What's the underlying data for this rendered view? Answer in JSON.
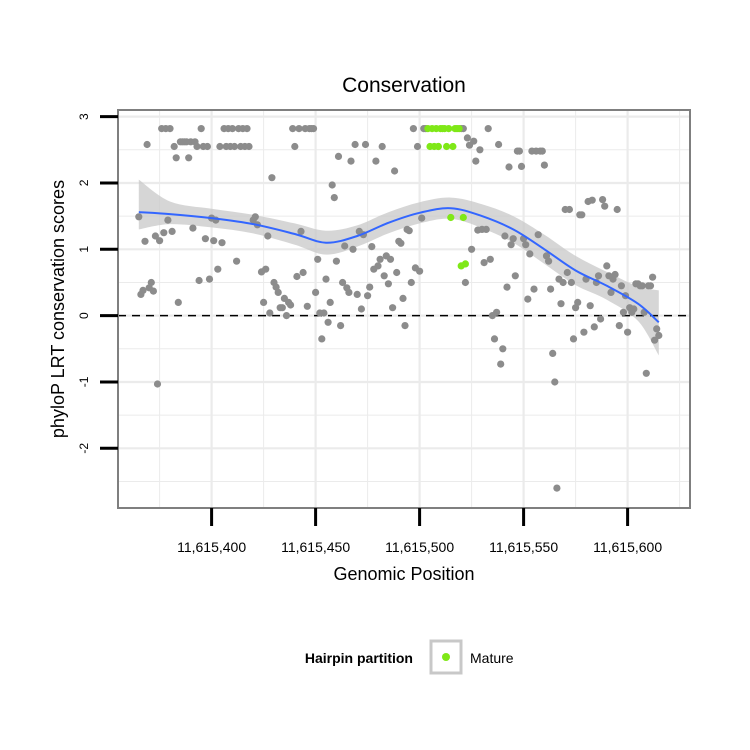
{
  "chart_data": {
    "type": "scatter",
    "title": "Conservation",
    "xlabel": "Genomic Position",
    "ylabel": "phyloP LRT conservation scores",
    "xlim": [
      11615355,
      11615630
    ],
    "ylim": [
      -2.9,
      3.1
    ],
    "x_ticks": [
      {
        "value": 11615400,
        "label": "11,615,400"
      },
      {
        "value": 11615450,
        "label": "11,615,450"
      },
      {
        "value": 11615500,
        "label": "11,615,500"
      },
      {
        "value": 11615550,
        "label": "11,615,550"
      },
      {
        "value": 11615600,
        "label": "11,615,600"
      }
    ],
    "y_ticks": [
      {
        "value": 3,
        "label": "3"
      },
      {
        "value": 2,
        "label": "2"
      },
      {
        "value": 1,
        "label": "1"
      },
      {
        "value": 0,
        "label": "0"
      },
      {
        "value": -1,
        "label": "-1"
      },
      {
        "value": -2,
        "label": "-2"
      }
    ],
    "reference_line": {
      "y": 0,
      "style": "dashed"
    },
    "colors": {
      "other": "#8c8c8c",
      "mature": "#7fe817",
      "smooth": "#3366ff",
      "ribbon": "#c8c8c8",
      "panel_border": "#7f7f7f",
      "grid": "#ebebeb"
    },
    "smooth": {
      "x": [
        11615365,
        11615380,
        11615400,
        11615420,
        11615440,
        11615455,
        11615470,
        11615485,
        11615500,
        11615515,
        11615530,
        11615545,
        11615560,
        11615575,
        11615590,
        11615605,
        11615615
      ],
      "y": [
        1.56,
        1.53,
        1.47,
        1.38,
        1.23,
        1.1,
        1.2,
        1.4,
        1.55,
        1.62,
        1.5,
        1.3,
        1.0,
        0.68,
        0.45,
        0.18,
        -0.1
      ],
      "lower": [
        1.3,
        1.38,
        1.33,
        1.24,
        1.07,
        0.92,
        1.04,
        1.24,
        1.39,
        1.46,
        1.32,
        1.1,
        0.78,
        0.46,
        0.24,
        -0.08,
        -0.6
      ],
      "upper": [
        2.05,
        1.72,
        1.61,
        1.52,
        1.39,
        1.28,
        1.36,
        1.56,
        1.71,
        1.78,
        1.68,
        1.5,
        1.22,
        0.9,
        0.66,
        0.44,
        0.38
      ]
    },
    "series": [
      {
        "name": "Other",
        "color": "#8c8c8c",
        "points": [
          [
            11615365,
            1.49
          ],
          [
            11615366,
            0.32
          ],
          [
            11615367,
            0.38
          ],
          [
            11615368,
            1.12
          ],
          [
            11615369,
            2.58
          ],
          [
            11615370,
            0.42
          ],
          [
            11615371,
            0.5
          ],
          [
            11615372,
            0.37
          ],
          [
            11615373,
            1.2
          ],
          [
            11615374,
            -1.03
          ],
          [
            11615375,
            1.13
          ],
          [
            11615376,
            2.82
          ],
          [
            11615377,
            1.25
          ],
          [
            11615378,
            2.82
          ],
          [
            11615379,
            1.44
          ],
          [
            11615380,
            2.82
          ],
          [
            11615381,
            1.27
          ],
          [
            11615382,
            2.55
          ],
          [
            11615383,
            2.38
          ],
          [
            11615384,
            0.2
          ],
          [
            11615385,
            2.62
          ],
          [
            11615386,
            2.62
          ],
          [
            11615387,
            2.62
          ],
          [
            11615388,
            2.62
          ],
          [
            11615389,
            2.38
          ],
          [
            11615390,
            2.62
          ],
          [
            11615391,
            1.32
          ],
          [
            11615392,
            2.62
          ],
          [
            11615393,
            2.55
          ],
          [
            11615394,
            0.53
          ],
          [
            11615395,
            2.82
          ],
          [
            11615396,
            2.55
          ],
          [
            11615397,
            1.16
          ],
          [
            11615398,
            2.55
          ],
          [
            11615399,
            0.55
          ],
          [
            11615400,
            1.47
          ],
          [
            11615401,
            1.13
          ],
          [
            11615402,
            1.44
          ],
          [
            11615403,
            0.7
          ],
          [
            11615404,
            2.55
          ],
          [
            11615405,
            1.1
          ],
          [
            11615406,
            2.82
          ],
          [
            11615407,
            2.55
          ],
          [
            11615408,
            2.82
          ],
          [
            11615409,
            2.55
          ],
          [
            11615410,
            2.82
          ],
          [
            11615411,
            2.55
          ],
          [
            11615412,
            0.82
          ],
          [
            11615413,
            2.82
          ],
          [
            11615414,
            2.55
          ],
          [
            11615415,
            2.82
          ],
          [
            11615416,
            2.55
          ],
          [
            11615417,
            2.82
          ],
          [
            11615418,
            2.55
          ],
          [
            11615420,
            1.44
          ],
          [
            11615421,
            1.49
          ],
          [
            11615422,
            1.37
          ],
          [
            11615424,
            0.66
          ],
          [
            11615425,
            0.2
          ],
          [
            11615426,
            0.7
          ],
          [
            11615427,
            1.2
          ],
          [
            11615428,
            0.04
          ],
          [
            11615429,
            2.08
          ],
          [
            11615430,
            0.5
          ],
          [
            11615431,
            0.43
          ],
          [
            11615432,
            0.35
          ],
          [
            11615433,
            0.12
          ],
          [
            11615434,
            0.12
          ],
          [
            11615435,
            0.26
          ],
          [
            11615436,
            0.0
          ],
          [
            11615437,
            0.2
          ],
          [
            11615438,
            0.16
          ],
          [
            11615439,
            2.82
          ],
          [
            11615440,
            2.55
          ],
          [
            11615441,
            0.59
          ],
          [
            11615442,
            2.82
          ],
          [
            11615443,
            1.27
          ],
          [
            11615444,
            0.65
          ],
          [
            11615445,
            2.82
          ],
          [
            11615446,
            0.14
          ],
          [
            11615447,
            2.82
          ],
          [
            11615448,
            2.82
          ],
          [
            11615449,
            2.82
          ],
          [
            11615450,
            0.35
          ],
          [
            11615451,
            0.85
          ],
          [
            11615452,
            0.04
          ],
          [
            11615453,
            -0.35
          ],
          [
            11615454,
            0.04
          ],
          [
            11615455,
            0.55
          ],
          [
            11615456,
            -0.1
          ],
          [
            11615457,
            0.2
          ],
          [
            11615458,
            1.97
          ],
          [
            11615459,
            1.78
          ],
          [
            11615460,
            0.82
          ],
          [
            11615461,
            2.4
          ],
          [
            11615462,
            -0.15
          ],
          [
            11615463,
            0.5
          ],
          [
            11615464,
            1.05
          ],
          [
            11615465,
            0.42
          ],
          [
            11615466,
            0.35
          ],
          [
            11615467,
            2.33
          ],
          [
            11615468,
            1.0
          ],
          [
            11615469,
            2.58
          ],
          [
            11615470,
            0.32
          ],
          [
            11615471,
            1.27
          ],
          [
            11615472,
            0.1
          ],
          [
            11615473,
            1.22
          ],
          [
            11615474,
            2.58
          ],
          [
            11615475,
            0.3
          ],
          [
            11615476,
            0.43
          ],
          [
            11615477,
            1.04
          ],
          [
            11615478,
            0.7
          ],
          [
            11615479,
            2.33
          ],
          [
            11615480,
            0.75
          ],
          [
            11615481,
            0.85
          ],
          [
            11615482,
            2.55
          ],
          [
            11615483,
            0.6
          ],
          [
            11615484,
            0.9
          ],
          [
            11615485,
            0.48
          ],
          [
            11615486,
            0.85
          ],
          [
            11615487,
            0.12
          ],
          [
            11615488,
            2.18
          ],
          [
            11615489,
            0.65
          ],
          [
            11615490,
            1.12
          ],
          [
            11615491,
            1.09
          ],
          [
            11615492,
            0.26
          ],
          [
            11615493,
            -0.15
          ],
          [
            11615494,
            1.3
          ],
          [
            11615495,
            1.28
          ],
          [
            11615496,
            0.5
          ],
          [
            11615497,
            2.82
          ],
          [
            11615498,
            0.72
          ],
          [
            11615499,
            2.55
          ],
          [
            11615500,
            0.67
          ],
          [
            11615501,
            1.47
          ],
          [
            11615502,
            2.82
          ],
          [
            11615503,
            2.82
          ],
          [
            11615520,
            2.82
          ],
          [
            11615521,
            2.82
          ],
          [
            11615522,
            0.5
          ],
          [
            11615523,
            2.68
          ],
          [
            11615524,
            2.57
          ],
          [
            11615525,
            1.0
          ],
          [
            11615526,
            2.63
          ],
          [
            11615527,
            2.33
          ],
          [
            11615528,
            1.29
          ],
          [
            11615529,
            2.5
          ],
          [
            11615530,
            1.3
          ],
          [
            11615531,
            0.8
          ],
          [
            11615532,
            1.3
          ],
          [
            11615533,
            2.82
          ],
          [
            11615534,
            0.85
          ],
          [
            11615535,
            0.0
          ],
          [
            11615536,
            -0.35
          ],
          [
            11615537,
            0.05
          ],
          [
            11615538,
            2.58
          ],
          [
            11615539,
            -0.73
          ],
          [
            11615540,
            -0.5
          ],
          [
            11615541,
            1.2
          ],
          [
            11615542,
            0.43
          ],
          [
            11615543,
            2.24
          ],
          [
            11615544,
            1.07
          ],
          [
            11615545,
            1.16
          ],
          [
            11615546,
            0.6
          ],
          [
            11615547,
            2.48
          ],
          [
            11615548,
            2.48
          ],
          [
            11615549,
            2.25
          ],
          [
            11615550,
            1.16
          ],
          [
            11615551,
            1.07
          ],
          [
            11615552,
            0.25
          ],
          [
            11615553,
            0.93
          ],
          [
            11615554,
            2.48
          ],
          [
            11615555,
            0.4
          ],
          [
            11615556,
            2.48
          ],
          [
            11615557,
            1.22
          ],
          [
            11615558,
            2.48
          ],
          [
            11615559,
            2.48
          ],
          [
            11615560,
            2.27
          ],
          [
            11615561,
            0.9
          ],
          [
            11615562,
            0.82
          ],
          [
            11615563,
            0.4
          ],
          [
            11615564,
            -0.57
          ],
          [
            11615565,
            -1.0
          ],
          [
            11615566,
            -2.6
          ],
          [
            11615567,
            0.55
          ],
          [
            11615568,
            0.18
          ],
          [
            11615569,
            0.5
          ],
          [
            11615570,
            1.6
          ],
          [
            11615571,
            0.65
          ],
          [
            11615572,
            1.6
          ],
          [
            11615573,
            0.5
          ],
          [
            11615574,
            -0.35
          ],
          [
            11615575,
            0.12
          ],
          [
            11615576,
            0.2
          ],
          [
            11615577,
            1.52
          ],
          [
            11615578,
            1.52
          ],
          [
            11615579,
            -0.25
          ],
          [
            11615580,
            0.55
          ],
          [
            11615581,
            1.72
          ],
          [
            11615582,
            0.15
          ],
          [
            11615583,
            1.74
          ],
          [
            11615584,
            -0.17
          ],
          [
            11615585,
            0.5
          ],
          [
            11615586,
            0.6
          ],
          [
            11615587,
            -0.05
          ],
          [
            11615588,
            1.75
          ],
          [
            11615589,
            1.65
          ],
          [
            11615590,
            0.75
          ],
          [
            11615591,
            0.6
          ],
          [
            11615592,
            0.35
          ],
          [
            11615593,
            0.55
          ],
          [
            11615594,
            0.62
          ],
          [
            11615595,
            1.6
          ],
          [
            11615596,
            -0.15
          ],
          [
            11615597,
            0.45
          ],
          [
            11615598,
            0.05
          ],
          [
            11615599,
            0.3
          ],
          [
            11615600,
            -0.25
          ],
          [
            11615601,
            0.12
          ],
          [
            11615602,
            0.05
          ],
          [
            11615603,
            0.1
          ],
          [
            11615604,
            0.48
          ],
          [
            11615605,
            0.48
          ],
          [
            11615606,
            0.45
          ],
          [
            11615607,
            0.45
          ],
          [
            11615608,
            0.05
          ],
          [
            11615609,
            -0.87
          ],
          [
            11615610,
            0.45
          ],
          [
            11615611,
            0.45
          ],
          [
            11615612,
            0.58
          ],
          [
            11615613,
            -0.37
          ],
          [
            11615614,
            -0.2
          ],
          [
            11615615,
            -0.3
          ]
        ]
      },
      {
        "name": "Mature",
        "color": "#7fe817",
        "points": [
          [
            11615504,
            2.82
          ],
          [
            11615505,
            2.55
          ],
          [
            11615506,
            2.82
          ],
          [
            11615507,
            2.55
          ],
          [
            11615508,
            2.82
          ],
          [
            11615509,
            2.55
          ],
          [
            11615510,
            2.82
          ],
          [
            11615511,
            2.82
          ],
          [
            11615512,
            2.82
          ],
          [
            11615513,
            2.55
          ],
          [
            11615514,
            2.82
          ],
          [
            11615515,
            1.48
          ],
          [
            11615516,
            2.55
          ],
          [
            11615517,
            2.82
          ],
          [
            11615518,
            2.82
          ],
          [
            11615519,
            2.82
          ],
          [
            11615521,
            1.48
          ],
          [
            11615520,
            0.75
          ],
          [
            11615522,
            0.78
          ],
          [
            11615509,
            2.55
          ]
        ]
      }
    ],
    "legend": {
      "title": "Hairpin partition",
      "entries": [
        {
          "label": "Mature",
          "color": "#7fe817"
        }
      ],
      "position": "bottom"
    }
  }
}
